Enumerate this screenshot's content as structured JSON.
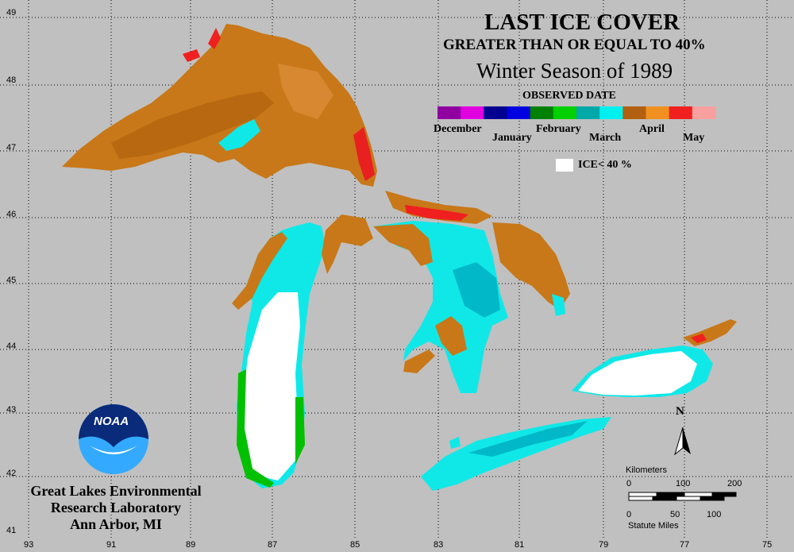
{
  "title": "LAST ICE COVER",
  "subtitle": "GREATER THAN OR EQUAL TO 40%",
  "season": "Winter Season of 1989",
  "legend": {
    "heading": "OBSERVED DATE",
    "months_top": [
      "December",
      "February",
      "April"
    ],
    "months_bottom": [
      "January",
      "March",
      "May"
    ],
    "ice_label": "ICE< 40 %",
    "colors": [
      "#9000a0",
      "#e000e0",
      "#000090",
      "#0000e0",
      "#008000",
      "#00d000",
      "#00a8a8",
      "#00f0f0",
      "#b06010",
      "#f09020",
      "#f02020",
      "#f8a0a0"
    ]
  },
  "axes": {
    "lat": [
      "49",
      "48",
      "47",
      "46",
      "45",
      "44",
      "43",
      "42",
      "41"
    ],
    "lon": [
      "93",
      "91",
      "89",
      "87",
      "85",
      "83",
      "81",
      "79",
      "77",
      "75"
    ]
  },
  "logo": {
    "text": "NOAA"
  },
  "lab": {
    "line1": "Great Lakes Environmental",
    "line2": "Research Laboratory",
    "line3": "Ann Arbor, MI"
  },
  "scale": {
    "km_label": "Kilometers",
    "km_ticks": [
      "0",
      "100",
      "200"
    ],
    "mi_ticks": [
      "0",
      "50",
      "100"
    ],
    "mi_label": "Statute Miles"
  },
  "north": "N"
}
